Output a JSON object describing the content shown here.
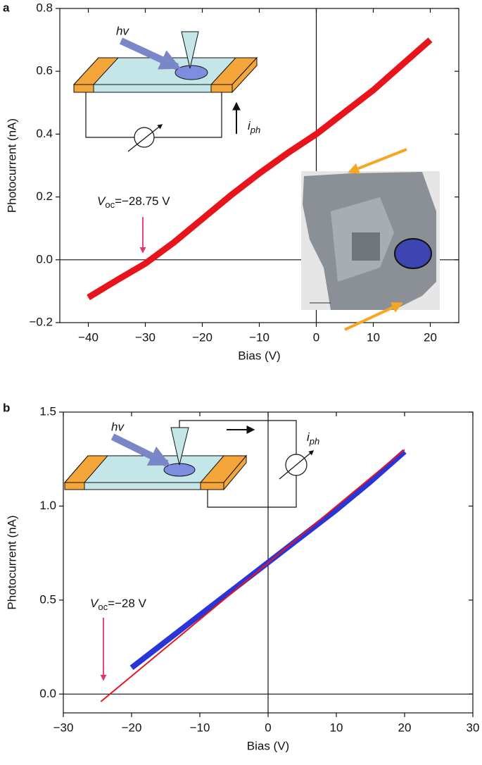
{
  "chart_data": [
    {
      "type": "line",
      "panel_label": "a",
      "x_label": "Bias (V)",
      "y_label": "Photocurrent (nA)",
      "xlim": [
        -45,
        25
      ],
      "ylim": [
        -0.2,
        0.8
      ],
      "xticks": [
        {
          "value": -40,
          "label": "−40"
        },
        {
          "value": -30,
          "label": "−30"
        },
        {
          "value": -20,
          "label": "−20"
        },
        {
          "value": -10,
          "label": "−10"
        },
        0,
        10,
        20
      ],
      "yticks": [
        {
          "value": -0.2,
          "label": "−0.2"
        },
        {
          "value": 0,
          "label": "0.0"
        },
        0.2,
        0.4,
        0.6,
        0.8
      ],
      "zero_lines": true,
      "series": [
        {
          "color": "#e8141b",
          "width": 9,
          "x": [
            -40,
            -35,
            -30,
            -25,
            -20,
            -15,
            -10,
            -5,
            0,
            5,
            10,
            15,
            20
          ],
          "values": [
            -0.12,
            -0.065,
            -0.012,
            0.055,
            0.13,
            0.205,
            0.275,
            0.34,
            0.4,
            0.47,
            0.54,
            0.62,
            0.7
          ]
        }
      ],
      "annotation": {
        "symbol": "V",
        "subscript": "oc",
        "text": "=−28.75 V"
      },
      "inset_labels": {
        "photon": "hv",
        "current": {
          "symbol": "i",
          "subscript": "ph"
        }
      }
    },
    {
      "type": "line",
      "panel_label": "b",
      "x_label": "Bias (V)",
      "y_label": "Photocurrent (nA)",
      "xlim": [
        -30,
        30
      ],
      "ylim": [
        -0.1,
        1.5
      ],
      "xticks": [
        {
          "value": -30,
          "label": "−30"
        },
        {
          "value": -20,
          "label": "−20"
        },
        {
          "value": -10,
          "label": "−10"
        },
        0,
        10,
        20,
        30
      ],
      "yticks": [
        {
          "value": 0,
          "label": "0.0"
        },
        0.5,
        {
          "value": 1,
          "label": "1.0"
        },
        1.5
      ],
      "zero_lines": true,
      "series": [
        {
          "color": "#2a35d8",
          "width": 8,
          "x": [
            -20,
            -15,
            -10,
            -5,
            0,
            5,
            10,
            15,
            20
          ],
          "values": [
            0.14,
            0.28,
            0.42,
            0.56,
            0.7,
            0.84,
            0.98,
            1.13,
            1.29
          ]
        },
        {
          "color": "#e8141b",
          "width": 2,
          "x": [
            -24.5,
            20
          ],
          "values": [
            -0.04,
            1.3
          ]
        }
      ],
      "annotation": {
        "symbol": "V",
        "subscript": "oc",
        "text": "=−28 V"
      },
      "inset_labels": {
        "photon": "hv",
        "current": {
          "symbol": "i",
          "subscript": "ph"
        }
      }
    }
  ]
}
